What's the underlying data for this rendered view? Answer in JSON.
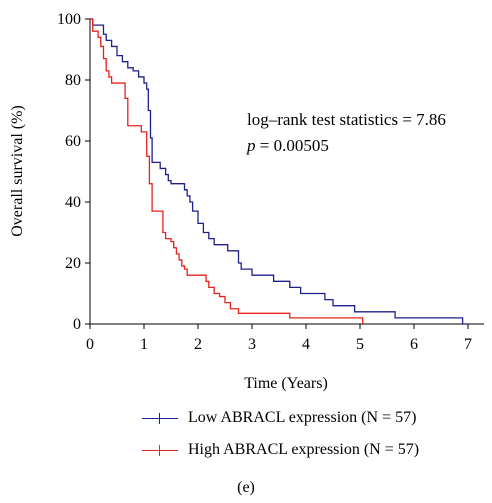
{
  "chart_data": {
    "type": "line",
    "subtype": "kaplan-meier",
    "xlabel": "Time (Years)",
    "ylabel": "Overall survival (%)",
    "xlim": [
      0,
      7.2
    ],
    "ylim": [
      0,
      100
    ],
    "xticks": [
      0,
      1,
      2,
      3,
      4,
      5,
      6,
      7
    ],
    "yticks": [
      0,
      20,
      40,
      60,
      80,
      100
    ],
    "grid": false,
    "legend_position": "bottom",
    "annotation": {
      "stat_line": "log–rank test statistics = 7.86",
      "p_symbol": "p",
      "p_value": " = 0.00505"
    },
    "series": [
      {
        "name": "Low ABRACL expression (N = 57)",
        "color": "#1f1f8c",
        "points": [
          [
            0,
            100
          ],
          [
            0.05,
            98
          ],
          [
            0.2,
            98
          ],
          [
            0.25,
            95
          ],
          [
            0.3,
            93
          ],
          [
            0.4,
            91
          ],
          [
            0.5,
            88
          ],
          [
            0.6,
            86
          ],
          [
            0.7,
            84
          ],
          [
            0.8,
            83
          ],
          [
            0.9,
            81
          ],
          [
            1.0,
            79
          ],
          [
            1.05,
            77
          ],
          [
            1.08,
            70
          ],
          [
            1.12,
            61
          ],
          [
            1.15,
            53
          ],
          [
            1.3,
            51
          ],
          [
            1.4,
            49
          ],
          [
            1.45,
            47
          ],
          [
            1.5,
            46
          ],
          [
            1.75,
            44
          ],
          [
            1.8,
            42
          ],
          [
            1.85,
            40
          ],
          [
            1.9,
            37
          ],
          [
            2.0,
            33
          ],
          [
            2.1,
            30
          ],
          [
            2.2,
            28
          ],
          [
            2.3,
            26
          ],
          [
            2.5,
            26
          ],
          [
            2.55,
            24
          ],
          [
            2.7,
            24
          ],
          [
            2.75,
            20
          ],
          [
            2.8,
            18
          ],
          [
            3.0,
            16
          ],
          [
            3.4,
            14
          ],
          [
            3.7,
            12
          ],
          [
            3.9,
            10
          ],
          [
            4.35,
            8
          ],
          [
            4.5,
            6
          ],
          [
            4.9,
            4
          ],
          [
            5.65,
            2
          ],
          [
            6.9,
            2
          ],
          [
            6.9,
            0
          ],
          [
            7.0,
            0
          ]
        ]
      },
      {
        "name": "High ABRACL expression (N = 57)",
        "color": "#e8201e",
        "points": [
          [
            0,
            100
          ],
          [
            0.05,
            96
          ],
          [
            0.15,
            94
          ],
          [
            0.2,
            91
          ],
          [
            0.25,
            87
          ],
          [
            0.3,
            83
          ],
          [
            0.35,
            81
          ],
          [
            0.4,
            79
          ],
          [
            0.6,
            79
          ],
          [
            0.65,
            74
          ],
          [
            0.7,
            65
          ],
          [
            0.95,
            63
          ],
          [
            1.05,
            55
          ],
          [
            1.1,
            46
          ],
          [
            1.15,
            37
          ],
          [
            1.3,
            37
          ],
          [
            1.35,
            30
          ],
          [
            1.4,
            28
          ],
          [
            1.5,
            27
          ],
          [
            1.55,
            25
          ],
          [
            1.6,
            23
          ],
          [
            1.65,
            21
          ],
          [
            1.7,
            19
          ],
          [
            1.75,
            18
          ],
          [
            1.8,
            16
          ],
          [
            2.1,
            16
          ],
          [
            2.15,
            14
          ],
          [
            2.2,
            12
          ],
          [
            2.3,
            10
          ],
          [
            2.4,
            9
          ],
          [
            2.5,
            7
          ],
          [
            2.6,
            5
          ],
          [
            2.75,
            3.5
          ],
          [
            3.7,
            2
          ],
          [
            5.0,
            2
          ],
          [
            5.05,
            0
          ]
        ]
      }
    ]
  },
  "panel_label": "(e)"
}
